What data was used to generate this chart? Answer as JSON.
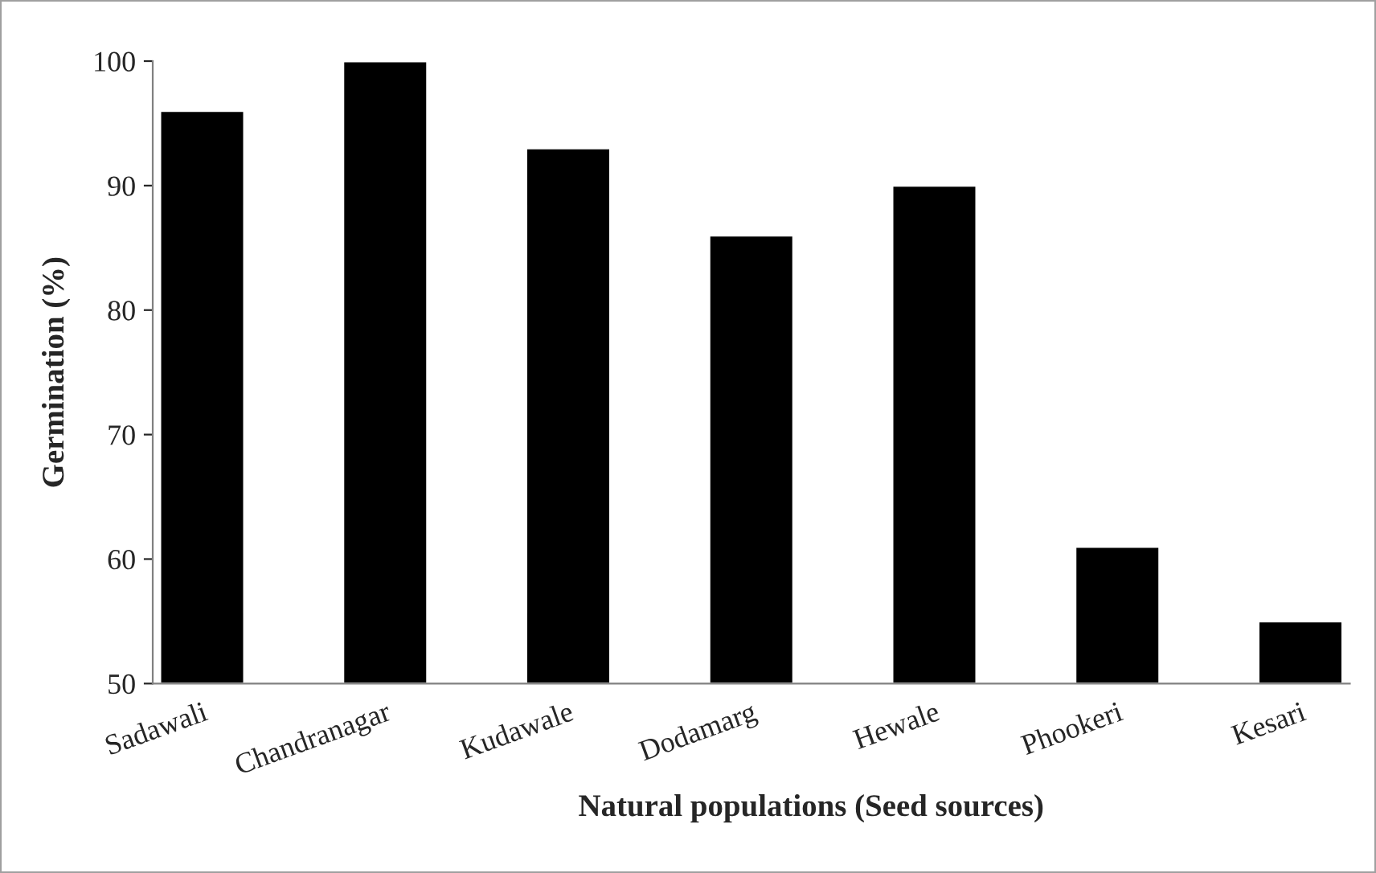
{
  "chart_data": {
    "type": "bar",
    "xlabel": "Natural populations (Seed sources)",
    "ylabel": "Germination (%)",
    "categories": [
      "Sadawali",
      "Chandranagar",
      "Kudawale",
      "Dodamarg",
      "Hewale",
      "Phookeri",
      "Kesari"
    ],
    "values": [
      96,
      100,
      93,
      86,
      90,
      61,
      55
    ],
    "color": "#000000",
    "ylim": [
      50,
      100
    ],
    "yticks": [
      50,
      60,
      70,
      80,
      90,
      100
    ],
    "grid": false,
    "legend": false
  }
}
